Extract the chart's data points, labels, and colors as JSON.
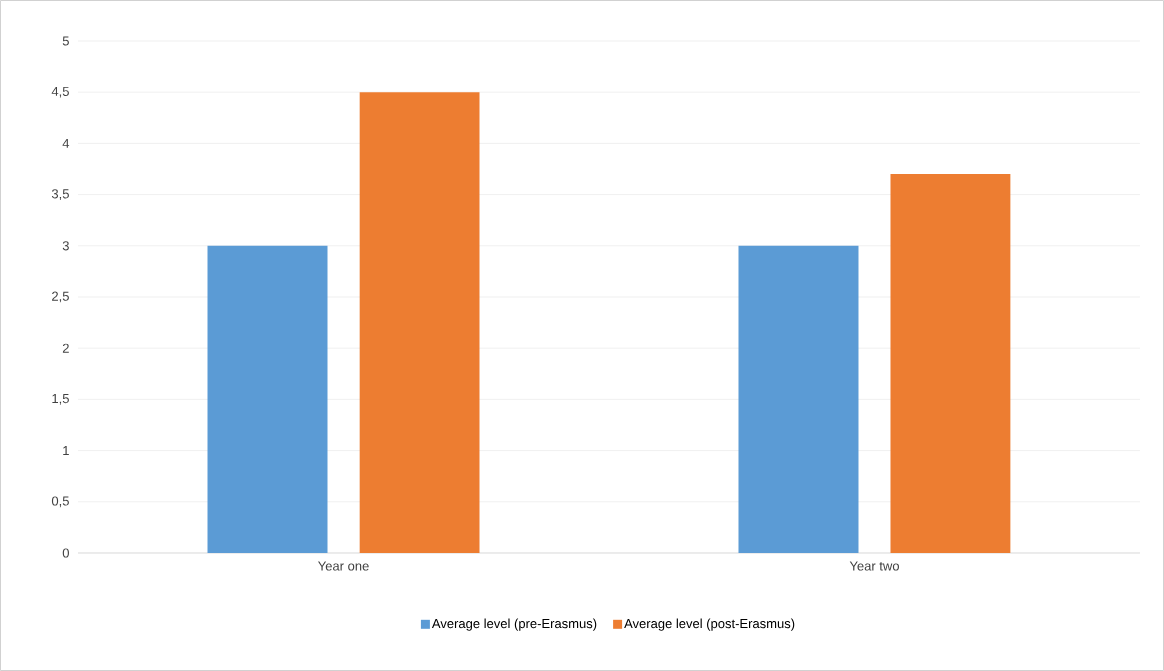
{
  "chart_data": {
    "type": "bar",
    "categories": [
      "Year one",
      "Year two"
    ],
    "series": [
      {
        "name": "Average level (pre-Erasmus)",
        "color": "#5b9bd5",
        "values": [
          3,
          3
        ]
      },
      {
        "name": "Average level (post-Erasmus)",
        "color": "#ed7d31",
        "values": [
          4.5,
          3.7
        ]
      }
    ],
    "ylim": [
      0,
      5
    ],
    "yticks": [
      0,
      {
        "value": 0.5,
        "label": "0,5"
      },
      1,
      {
        "value": 1.5,
        "label": "1,5"
      },
      2,
      {
        "value": 2.5,
        "label": "2,5"
      },
      3,
      {
        "value": 3.5,
        "label": "3,5"
      },
      4,
      {
        "value": 4.5,
        "label": "4,5"
      },
      5
    ],
    "grid": "y",
    "legend": "bottom"
  }
}
